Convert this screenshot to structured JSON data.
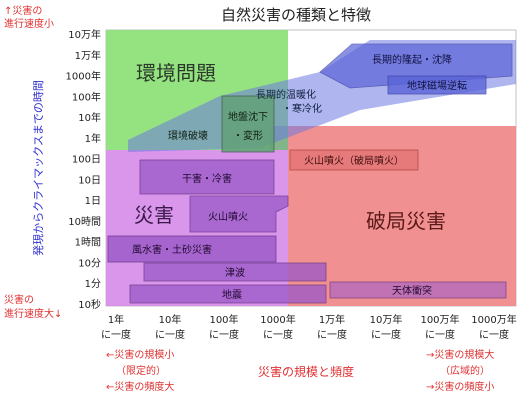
{
  "title": "自然災害の種類と特徴",
  "left_labels": {
    "fast_line1": "↑災害の",
    "fast_line2": "進行速度小",
    "axis_title": "発現からクライマックスまでの時間",
    "slow_line1": "災害の",
    "slow_line2": "進行速度大↓"
  },
  "y_ticks": [
    "10万年",
    "1万年",
    "1000年",
    "100年",
    "10年",
    "1年",
    "100日",
    "10日",
    "1日",
    "10時間",
    "1時間",
    "10分",
    "1分",
    "10秒"
  ],
  "x_ticks": [
    {
      "top": "1年",
      "bottom": "に一度"
    },
    {
      "top": "10年",
      "bottom": "に一度"
    },
    {
      "top": "100年",
      "bottom": "に一度"
    },
    {
      "top": "1000年",
      "bottom": "に一度"
    },
    {
      "top": "1万年",
      "bottom": "に一度"
    },
    {
      "top": "10万年",
      "bottom": "に一度"
    },
    {
      "top": "100万年",
      "bottom": "に一度"
    },
    {
      "top": "1000万年",
      "bottom": "に一度"
    }
  ],
  "x_axis_title": "災害の規模と頻度",
  "bottom_left": [
    "←災害の規模小",
    "（限定的）",
    "←災害の頻度大"
  ],
  "bottom_right": [
    "→災害の規模大",
    "（広域的）",
    "→災害の頻度小"
  ],
  "regions": {
    "environment": "環境問題",
    "disaster": "災害",
    "catastrophe": "破局災害"
  },
  "phenomena": {
    "long_term_uplift": "長期的隆起・沈降",
    "magnetic_reversal": "地球磁場逆転",
    "warming_cooling_1": "長期的温暖化",
    "warming_cooling_2": "・寒冷化",
    "subsidence_1": "地盤沈下",
    "subsidence_2": "・変形",
    "environmental_destruction": "環境破壊",
    "caldera_eruption": "火山噴火（破局噴火）",
    "drought_cold": "干害・冷害",
    "volcanic_eruption": "火山噴火",
    "flood_landslide": "風水害・土砂災害",
    "tsunami": "津波",
    "earthquake": "地震",
    "impact": "天体衝突"
  },
  "colors": {
    "environment_green": "#92e07a",
    "disaster_purple": "#d58be8",
    "catastrophe_red": "#f08a8a",
    "box_purple": "#9a58c8",
    "box_blue": "#6e78e0",
    "text_red": "#e03030",
    "text_blue": "#3030d0"
  }
}
